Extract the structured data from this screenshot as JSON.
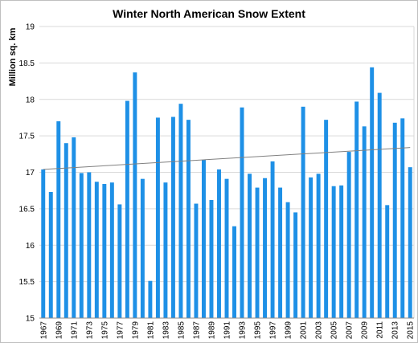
{
  "chart_data": {
    "type": "bar",
    "title": "Winter North American Snow Extent",
    "xlabel": "",
    "ylabel": "Million sq. km",
    "ylim": [
      15,
      19
    ],
    "yticks": [
      "15",
      "15.5",
      "16",
      "16.5",
      "17",
      "17.5",
      "18",
      "18.5",
      "19"
    ],
    "grid": true,
    "legend": "none",
    "colors": {
      "bar": "#1e90e6",
      "trendline": "#808080",
      "grid": "#d9d9d9"
    },
    "x": [
      1967,
      1968,
      1969,
      1970,
      1971,
      1972,
      1973,
      1974,
      1975,
      1976,
      1977,
      1978,
      1979,
      1980,
      1981,
      1982,
      1983,
      1984,
      1985,
      1986,
      1987,
      1988,
      1989,
      1990,
      1991,
      1992,
      1993,
      1994,
      1995,
      1996,
      1997,
      1998,
      1999,
      2000,
      2001,
      2002,
      2003,
      2004,
      2005,
      2006,
      2007,
      2008,
      2009,
      2010,
      2011,
      2012,
      2013,
      2014,
      2015
    ],
    "x_tick_labels": [
      "1967",
      "1969",
      "1971",
      "1973",
      "1975",
      "1977",
      "1979",
      "1981",
      "1983",
      "1985",
      "1987",
      "1989",
      "1991",
      "1993",
      "1995",
      "1997",
      "1999",
      "2001",
      "2003",
      "2005",
      "2007",
      "2009",
      "2011",
      "2013",
      "2015"
    ],
    "values": [
      17.04,
      16.73,
      17.7,
      17.4,
      17.48,
      16.99,
      17.0,
      16.87,
      16.84,
      16.86,
      16.56,
      17.98,
      18.37,
      16.91,
      15.51,
      17.75,
      16.86,
      17.76,
      17.94,
      17.72,
      16.57,
      17.17,
      16.62,
      17.04,
      16.91,
      16.26,
      17.89,
      16.98,
      16.79,
      16.92,
      17.15,
      16.79,
      16.59,
      16.45,
      17.9,
      16.93,
      16.98,
      17.72,
      16.81,
      16.82,
      17.28,
      17.97,
      17.63,
      18.44,
      18.09,
      16.55,
      17.68,
      17.74,
      17.07
    ],
    "trendline": {
      "type": "linear",
      "start": [
        1967,
        17.04
      ],
      "end": [
        2015,
        17.34
      ]
    }
  }
}
